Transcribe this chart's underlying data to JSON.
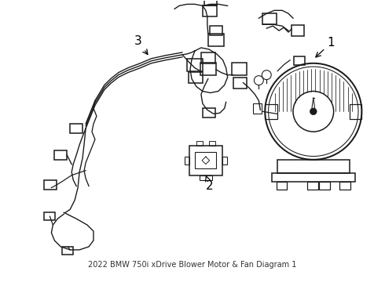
{
  "title": "2022 BMW 750i xDrive Blower Motor & Fan Diagram 1",
  "bg_color": "#ffffff",
  "line_color": "#1a1a1a",
  "label_color": "#000000",
  "figsize": [
    4.9,
    3.6
  ],
  "dpi": 100
}
